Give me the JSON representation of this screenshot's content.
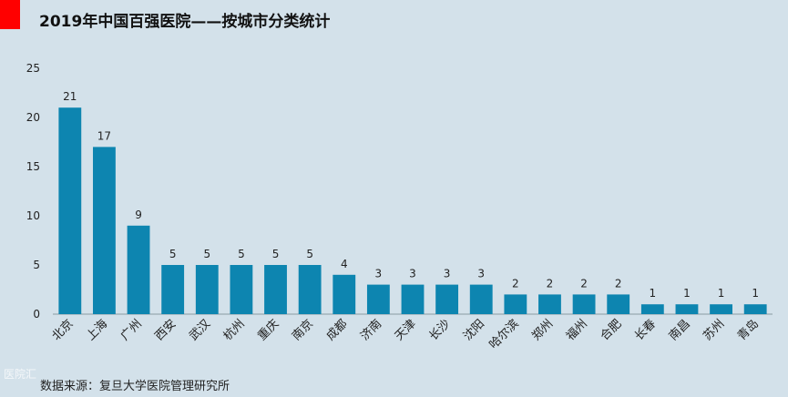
{
  "colors": {
    "background": "#d3e1ea",
    "bar": "#0d85b0",
    "accent": "#ff0000",
    "axis": "#8a9aa3",
    "text": "#222222"
  },
  "watermark": "医院汇",
  "source": "数据来源：复旦大学医院管理研究所",
  "chart_data": {
    "type": "bar",
    "title": "2019年中国百强医院——按城市分类统计",
    "xlabel": "",
    "ylabel": "",
    "ylim": [
      0,
      25
    ],
    "yticks": [
      0,
      5,
      10,
      15,
      20,
      25
    ],
    "grid": false,
    "categories": [
      "北京",
      "上海",
      "广州",
      "西安",
      "武汉",
      "杭州",
      "重庆",
      "南京",
      "成都",
      "济南",
      "天津",
      "长沙",
      "沈阳",
      "哈尔滨",
      "郑州",
      "福州",
      "合肥",
      "长春",
      "南昌",
      "苏州",
      "青岛"
    ],
    "values": [
      21,
      17,
      9,
      5,
      5,
      5,
      5,
      5,
      4,
      3,
      3,
      3,
      3,
      2,
      2,
      2,
      2,
      1,
      1,
      1,
      1
    ]
  }
}
